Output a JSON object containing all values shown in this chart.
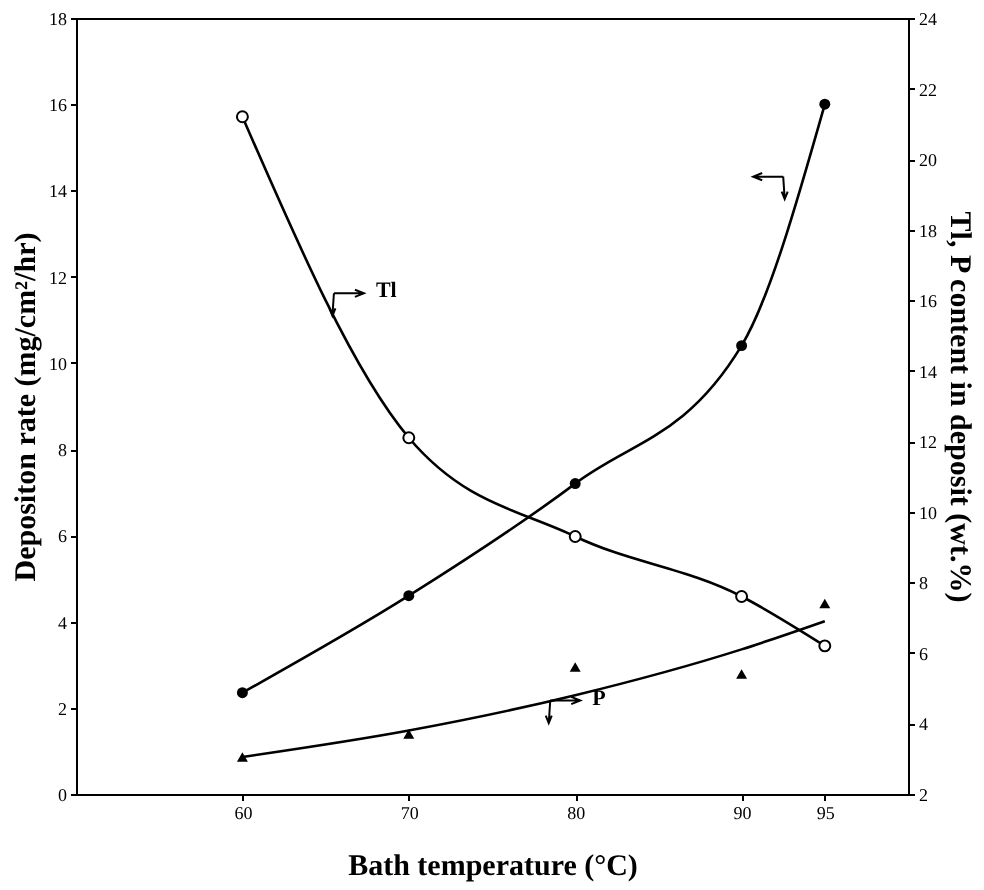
{
  "chart_data": {
    "type": "line",
    "xlabel": "Bath temperature (°C)",
    "ylabel": "Depositon rate (mg/cm²/hr)",
    "y2label": "Tl, P content in deposit (wt.%)",
    "x": [
      60,
      70,
      80,
      90,
      95
    ],
    "xlim": [
      50,
      100
    ],
    "xticks": [
      60,
      70,
      80,
      90,
      95
    ],
    "ylim": [
      0,
      18
    ],
    "yticks": [
      0,
      2,
      4,
      6,
      8,
      10,
      12,
      14,
      16,
      18
    ],
    "y2lim": [
      2,
      24
    ],
    "y2ticks": [
      2,
      4,
      6,
      8,
      10,
      12,
      14,
      16,
      18,
      20,
      22,
      24
    ],
    "series": [
      {
        "type": "line",
        "color": "#000000",
        "marker": "circle",
        "values": [
          2.35,
          4.6,
          7.2,
          10.4,
          16.0
        ]
      },
      {
        "type": "line",
        "color": "#000000",
        "marker": "circle",
        "axis": "y2",
        "values": [
          21.2,
          12.1,
          9.3,
          7.6,
          6.2
        ]
      },
      {
        "type": "scatter",
        "color": "#000000",
        "marker": "triangle",
        "axis": "y2",
        "values": [
          3.05,
          3.7,
          5.6,
          5.4,
          7.4
        ]
      },
      {
        "type": "line",
        "color": "#000000",
        "marker": "none",
        "axis": "y2",
        "x": [
          60,
          70,
          80,
          90,
          95
        ],
        "values": [
          3.05,
          3.8,
          4.8,
          6.1,
          6.9
        ]
      }
    ],
    "annotations": [
      "Tl",
      "P"
    ],
    "grid": false
  }
}
